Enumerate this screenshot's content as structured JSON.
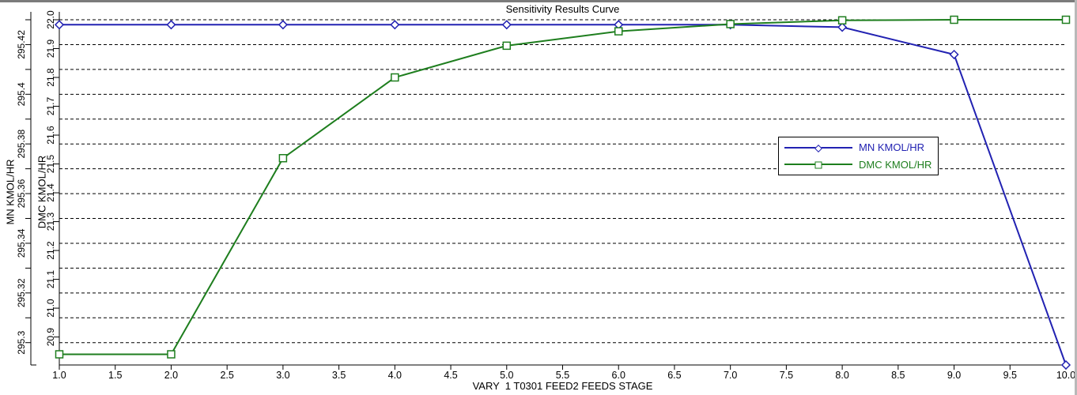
{
  "window": {
    "background": "#ffffff",
    "border_top_color": "#7b7b7b",
    "border_right_color": "#b9b9b9"
  },
  "chart_data": {
    "type": "line",
    "title": "Sensitivity Results Curve",
    "xlabel": "VARY  1 T0301 FEED2 FEEDS STAGE",
    "grid": "horizontal-dashed-black",
    "legend_position": "right-center-inside",
    "gridline_color": "#000000",
    "x": [
      1,
      2,
      3,
      4,
      5,
      6,
      7,
      8,
      9,
      10
    ],
    "x_axis": {
      "min": 1.0,
      "max": 10.0,
      "tick_values": [
        1.0,
        1.5,
        2.0,
        2.5,
        3.0,
        3.5,
        4.0,
        4.5,
        5.0,
        5.5,
        6.0,
        6.5,
        7.0,
        7.5,
        8.0,
        8.5,
        9.0,
        9.5,
        10.0
      ],
      "tick_labels": [
        "1.0",
        "1.5",
        "2.0",
        "2.5",
        "3.0",
        "3.5",
        "4.0",
        "4.5",
        "5.0",
        "5.5",
        "6.0",
        "6.5",
        "7.0",
        "7.5",
        "8.0",
        "8.5",
        "9.0",
        "9.5",
        "10.0"
      ]
    },
    "y_axes": {
      "mn": {
        "label": "MN KMOL/HR",
        "min": 295.291,
        "max": 295.43,
        "tick_values": [
          295.3,
          295.32,
          295.34,
          295.36,
          295.38,
          295.4,
          295.42
        ],
        "tick_labels": [
          "295.3",
          "295.32",
          "295.34",
          "295.36",
          "295.38",
          "295.4",
          "295.42"
        ],
        "minor_tick_values": [
          295.3,
          295.31,
          295.32,
          295.33,
          295.34,
          295.35,
          295.36,
          295.37,
          295.38,
          295.39,
          295.4,
          295.41,
          295.42,
          295.43
        ]
      },
      "dmc": {
        "label": "DMC KMOL/HR",
        "min": 20.803,
        "max": 22.0,
        "tick_values": [
          20.9,
          21.0,
          21.1,
          21.2,
          21.3,
          21.4,
          21.5,
          21.6,
          21.7,
          21.8,
          21.9,
          22.0
        ],
        "tick_labels": [
          "20.9",
          "21.0",
          "21.1",
          "21.2",
          "21.3",
          "21.4",
          "21.5",
          "21.6",
          "21.7",
          "21.8",
          "21.9",
          "22.0"
        ]
      }
    },
    "gridline_values_mn": [
      295.43,
      295.42,
      295.41,
      295.4,
      295.39,
      295.38,
      295.37,
      295.36,
      295.35,
      295.34,
      295.33,
      295.32,
      295.31,
      295.3
    ],
    "series": [
      {
        "name": "MN KMOL/HR",
        "axis": "mn",
        "color": "#2222B2",
        "marker": "diamond",
        "values": [
          295.428,
          295.428,
          295.428,
          295.428,
          295.428,
          295.428,
          295.428,
          295.427,
          295.416,
          295.291
        ]
      },
      {
        "name": "DMC KMOL/HR",
        "axis": "dmc",
        "color": "#1E7E1E",
        "marker": "square",
        "values": [
          20.84,
          20.84,
          21.52,
          21.8,
          21.91,
          21.96,
          21.985,
          21.998,
          22.0,
          22.0
        ]
      }
    ]
  }
}
